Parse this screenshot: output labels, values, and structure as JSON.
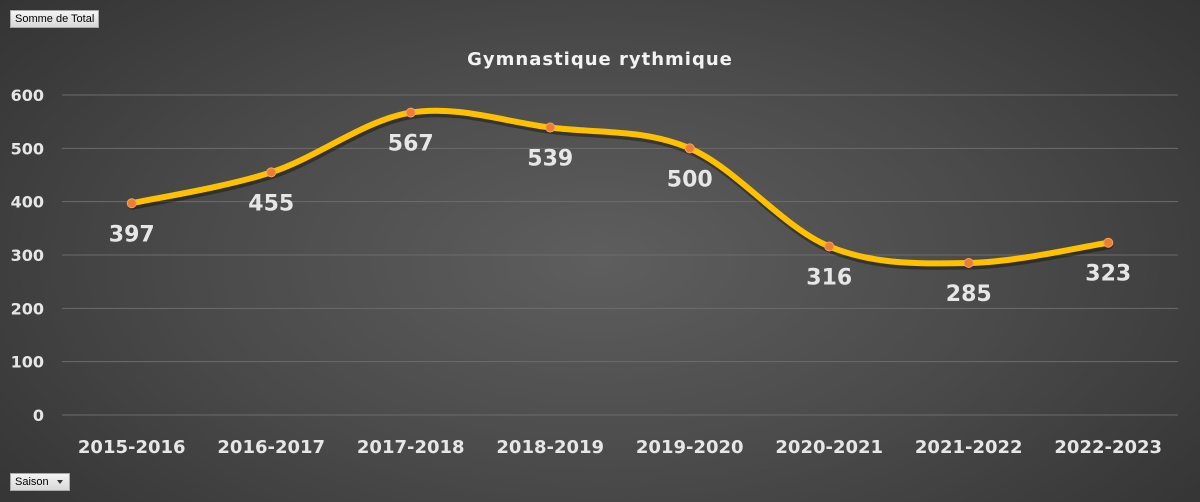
{
  "pivot": {
    "value_field_label": "Somme de Total",
    "axis_field_label": "Saison"
  },
  "chart_data": {
    "type": "line",
    "title": "Gymnastique rythmique",
    "smooth": true,
    "categories": [
      "2015-2016",
      "2016-2017",
      "2017-2018",
      "2018-2019",
      "2019-2020",
      "2020-2021",
      "2021-2022",
      "2022-2023"
    ],
    "series": [
      {
        "values": [
          397,
          455,
          567,
          539,
          500,
          316,
          285,
          323
        ]
      }
    ],
    "ylim": [
      0,
      600
    ],
    "yticks": [
      0,
      100,
      200,
      300,
      400,
      500,
      600
    ],
    "grid": true,
    "legend": "none",
    "line_color": "#ffc000",
    "marker_color": "#ed7d31",
    "background_color": "#404040"
  }
}
